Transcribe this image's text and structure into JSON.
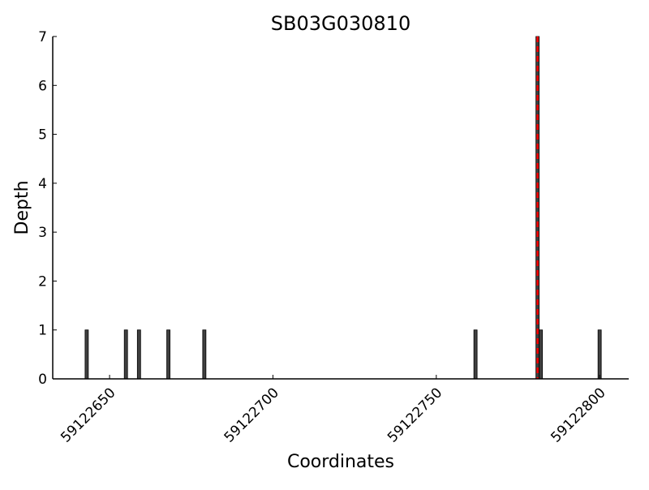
{
  "chart_data": {
    "type": "bar",
    "title": "SB03G030810",
    "xlabel": "Coordinates",
    "ylabel": "Depth",
    "xlim": [
      59122632.6,
      59122808.9
    ],
    "ylim": [
      0,
      7
    ],
    "xticks": [
      59122650,
      59122700,
      59122750,
      59122800
    ],
    "yticks": [
      0,
      1,
      2,
      3,
      4,
      5,
      6,
      7
    ],
    "x": [
      59122643,
      59122655,
      59122659,
      59122668,
      59122679,
      59122762,
      59122781,
      59122782,
      59122800
    ],
    "values": [
      1,
      1,
      1,
      1,
      1,
      1,
      7,
      1,
      1
    ],
    "bar_color": "#404040",
    "marker_line": {
      "x": 59122781,
      "color": "#ff0000",
      "style": "dashed"
    },
    "grid": false
  }
}
